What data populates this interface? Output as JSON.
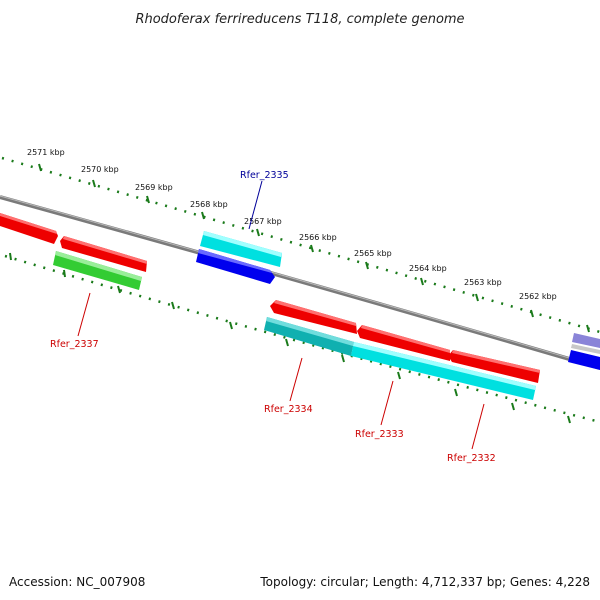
{
  "title": "Rhodoferax ferrireducens T118, complete genome",
  "footer": {
    "accession": "Accession: NC_007908",
    "summary": "Topology: circular; Length: 4,712,337 bp; Genes: 4,228"
  },
  "colors": {
    "backbone": "#808080",
    "ruler": "#1a7a1a",
    "forward_gene": "#ee0000",
    "reverse_gene_dark": "#0000ee",
    "cyan_gene": "#00e5e5",
    "teal_gene": "#10b8b8",
    "green_gene": "#33cc33",
    "purple_gene": "#8a84d8",
    "red_label": "#cc0000",
    "blue_label": "#000099"
  },
  "ruler_labels": [
    "2571 kbp",
    "2570 kbp",
    "2569 kbp",
    "2568 kbp",
    "2567 kbp",
    "2566 kbp",
    "2565 kbp",
    "2564 kbp",
    "2563 kbp",
    "2562 kbp"
  ],
  "gene_labels": {
    "rfer_2335": "Rfer_2335",
    "rfer_2337": "Rfer_2337",
    "rfer_2334": "Rfer_2334",
    "rfer_2333": "Rfer_2333",
    "rfer_2332": "Rfer_2332"
  }
}
